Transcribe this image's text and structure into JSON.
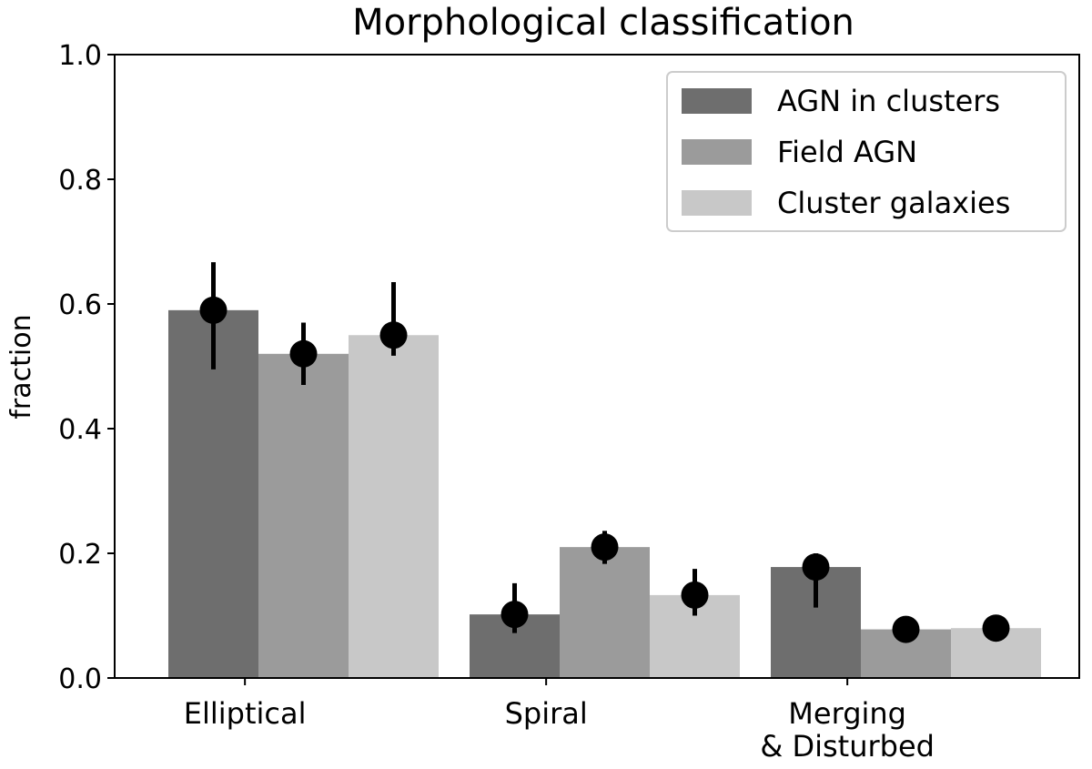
{
  "chart_data": {
    "type": "bar",
    "title": "Morphological classification",
    "xlabel": "",
    "ylabel": "fraction",
    "ylim": [
      0,
      1.0
    ],
    "yticks": [
      "0.0",
      "0.2",
      "0.4",
      "0.6",
      "0.8",
      "1.0"
    ],
    "grid": false,
    "legend_position": "top-right",
    "categories": [
      [
        "Elliptical"
      ],
      [
        "Spiral"
      ],
      [
        "Merging",
        "& Disturbed"
      ]
    ],
    "series": [
      {
        "name": "AGN in clusters",
        "color": "#6e6e6e",
        "values": [
          0.59,
          0.102,
          0.178
        ],
        "points": [
          0.59,
          0.102,
          0.178
        ],
        "err_low": [
          0.495,
          0.072,
          0.113
        ],
        "err_high": [
          0.667,
          0.152,
          0.2
        ]
      },
      {
        "name": "Field AGN",
        "color": "#9b9b9b",
        "values": [
          0.52,
          0.21,
          0.078
        ],
        "points": [
          0.52,
          0.21,
          0.078
        ],
        "err_low": [
          0.47,
          0.183,
          0.07
        ],
        "err_high": [
          0.57,
          0.236,
          0.086
        ]
      },
      {
        "name": "Cluster galaxies",
        "color": "#c8c8c8",
        "values": [
          0.55,
          0.133,
          0.08
        ],
        "points": [
          0.55,
          0.133,
          0.08
        ],
        "err_low": [
          0.517,
          0.1,
          0.073
        ],
        "err_high": [
          0.635,
          0.175,
          0.088
        ]
      }
    ]
  }
}
